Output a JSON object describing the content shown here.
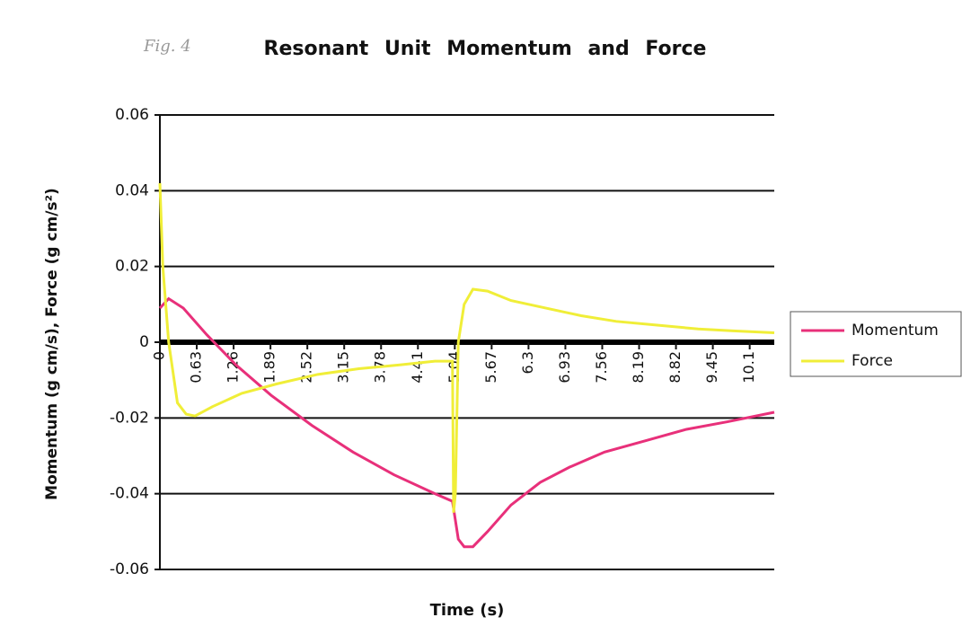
{
  "chart_data": {
    "type": "line",
    "figure_label": "Fig. 4",
    "title": "Resonant Unit Momentum and Force",
    "x_label": "Time (s)",
    "y_label": "Momentum (g cm/s), Force (g cm/s²)",
    "xlim": [
      0,
      10.5
    ],
    "xticks": [
      0,
      0.63,
      1.26,
      1.89,
      2.52,
      3.15,
      3.78,
      4.41,
      5.04,
      5.67,
      6.3,
      6.93,
      7.56,
      8.19,
      8.82,
      9.45,
      {
        "value": 10.08,
        "label": "10.1"
      }
    ],
    "ylim": [
      -0.06,
      0.06
    ],
    "yticks": [
      -0.06,
      -0.04,
      -0.02,
      0,
      0.02,
      0.04,
      0.06
    ],
    "grid": true,
    "legend": "right",
    "series": [
      {
        "name": "Momentum",
        "color": "#e8307a",
        "x": [
          0,
          0.15,
          0.4,
          0.8,
          1.3,
          1.9,
          2.6,
          3.3,
          4.0,
          4.7,
          5.0,
          5.05,
          5.1,
          5.2,
          5.35,
          5.6,
          6.0,
          6.5,
          7.0,
          7.6,
          8.3,
          9.0,
          9.7,
          10.5
        ],
        "values": [
          0.009,
          0.0115,
          0.009,
          0.002,
          -0.006,
          -0.014,
          -0.022,
          -0.029,
          -0.035,
          -0.04,
          -0.042,
          -0.047,
          -0.052,
          -0.054,
          -0.054,
          -0.05,
          -0.043,
          -0.037,
          -0.033,
          -0.029,
          -0.026,
          -0.023,
          -0.021,
          -0.0185
        ]
      },
      {
        "name": "Force",
        "color": "#f0ee38",
        "x": [
          0,
          0.05,
          0.15,
          0.3,
          0.45,
          0.6,
          0.9,
          1.4,
          2.0,
          2.7,
          3.4,
          4.1,
          4.7,
          5.0,
          5.02,
          5.05,
          5.1,
          5.2,
          5.35,
          5.6,
          6.0,
          6.6,
          7.2,
          7.8,
          8.5,
          9.2,
          9.8,
          10.5
        ],
        "values": [
          0.042,
          0.02,
          0.0,
          -0.016,
          -0.019,
          -0.0195,
          -0.017,
          -0.0135,
          -0.011,
          -0.0085,
          -0.007,
          -0.006,
          -0.005,
          -0.005,
          -0.045,
          -0.04,
          0.0,
          0.01,
          0.014,
          0.0135,
          0.011,
          0.009,
          0.007,
          0.0055,
          0.0045,
          0.0035,
          0.003,
          0.0025
        ]
      }
    ]
  }
}
